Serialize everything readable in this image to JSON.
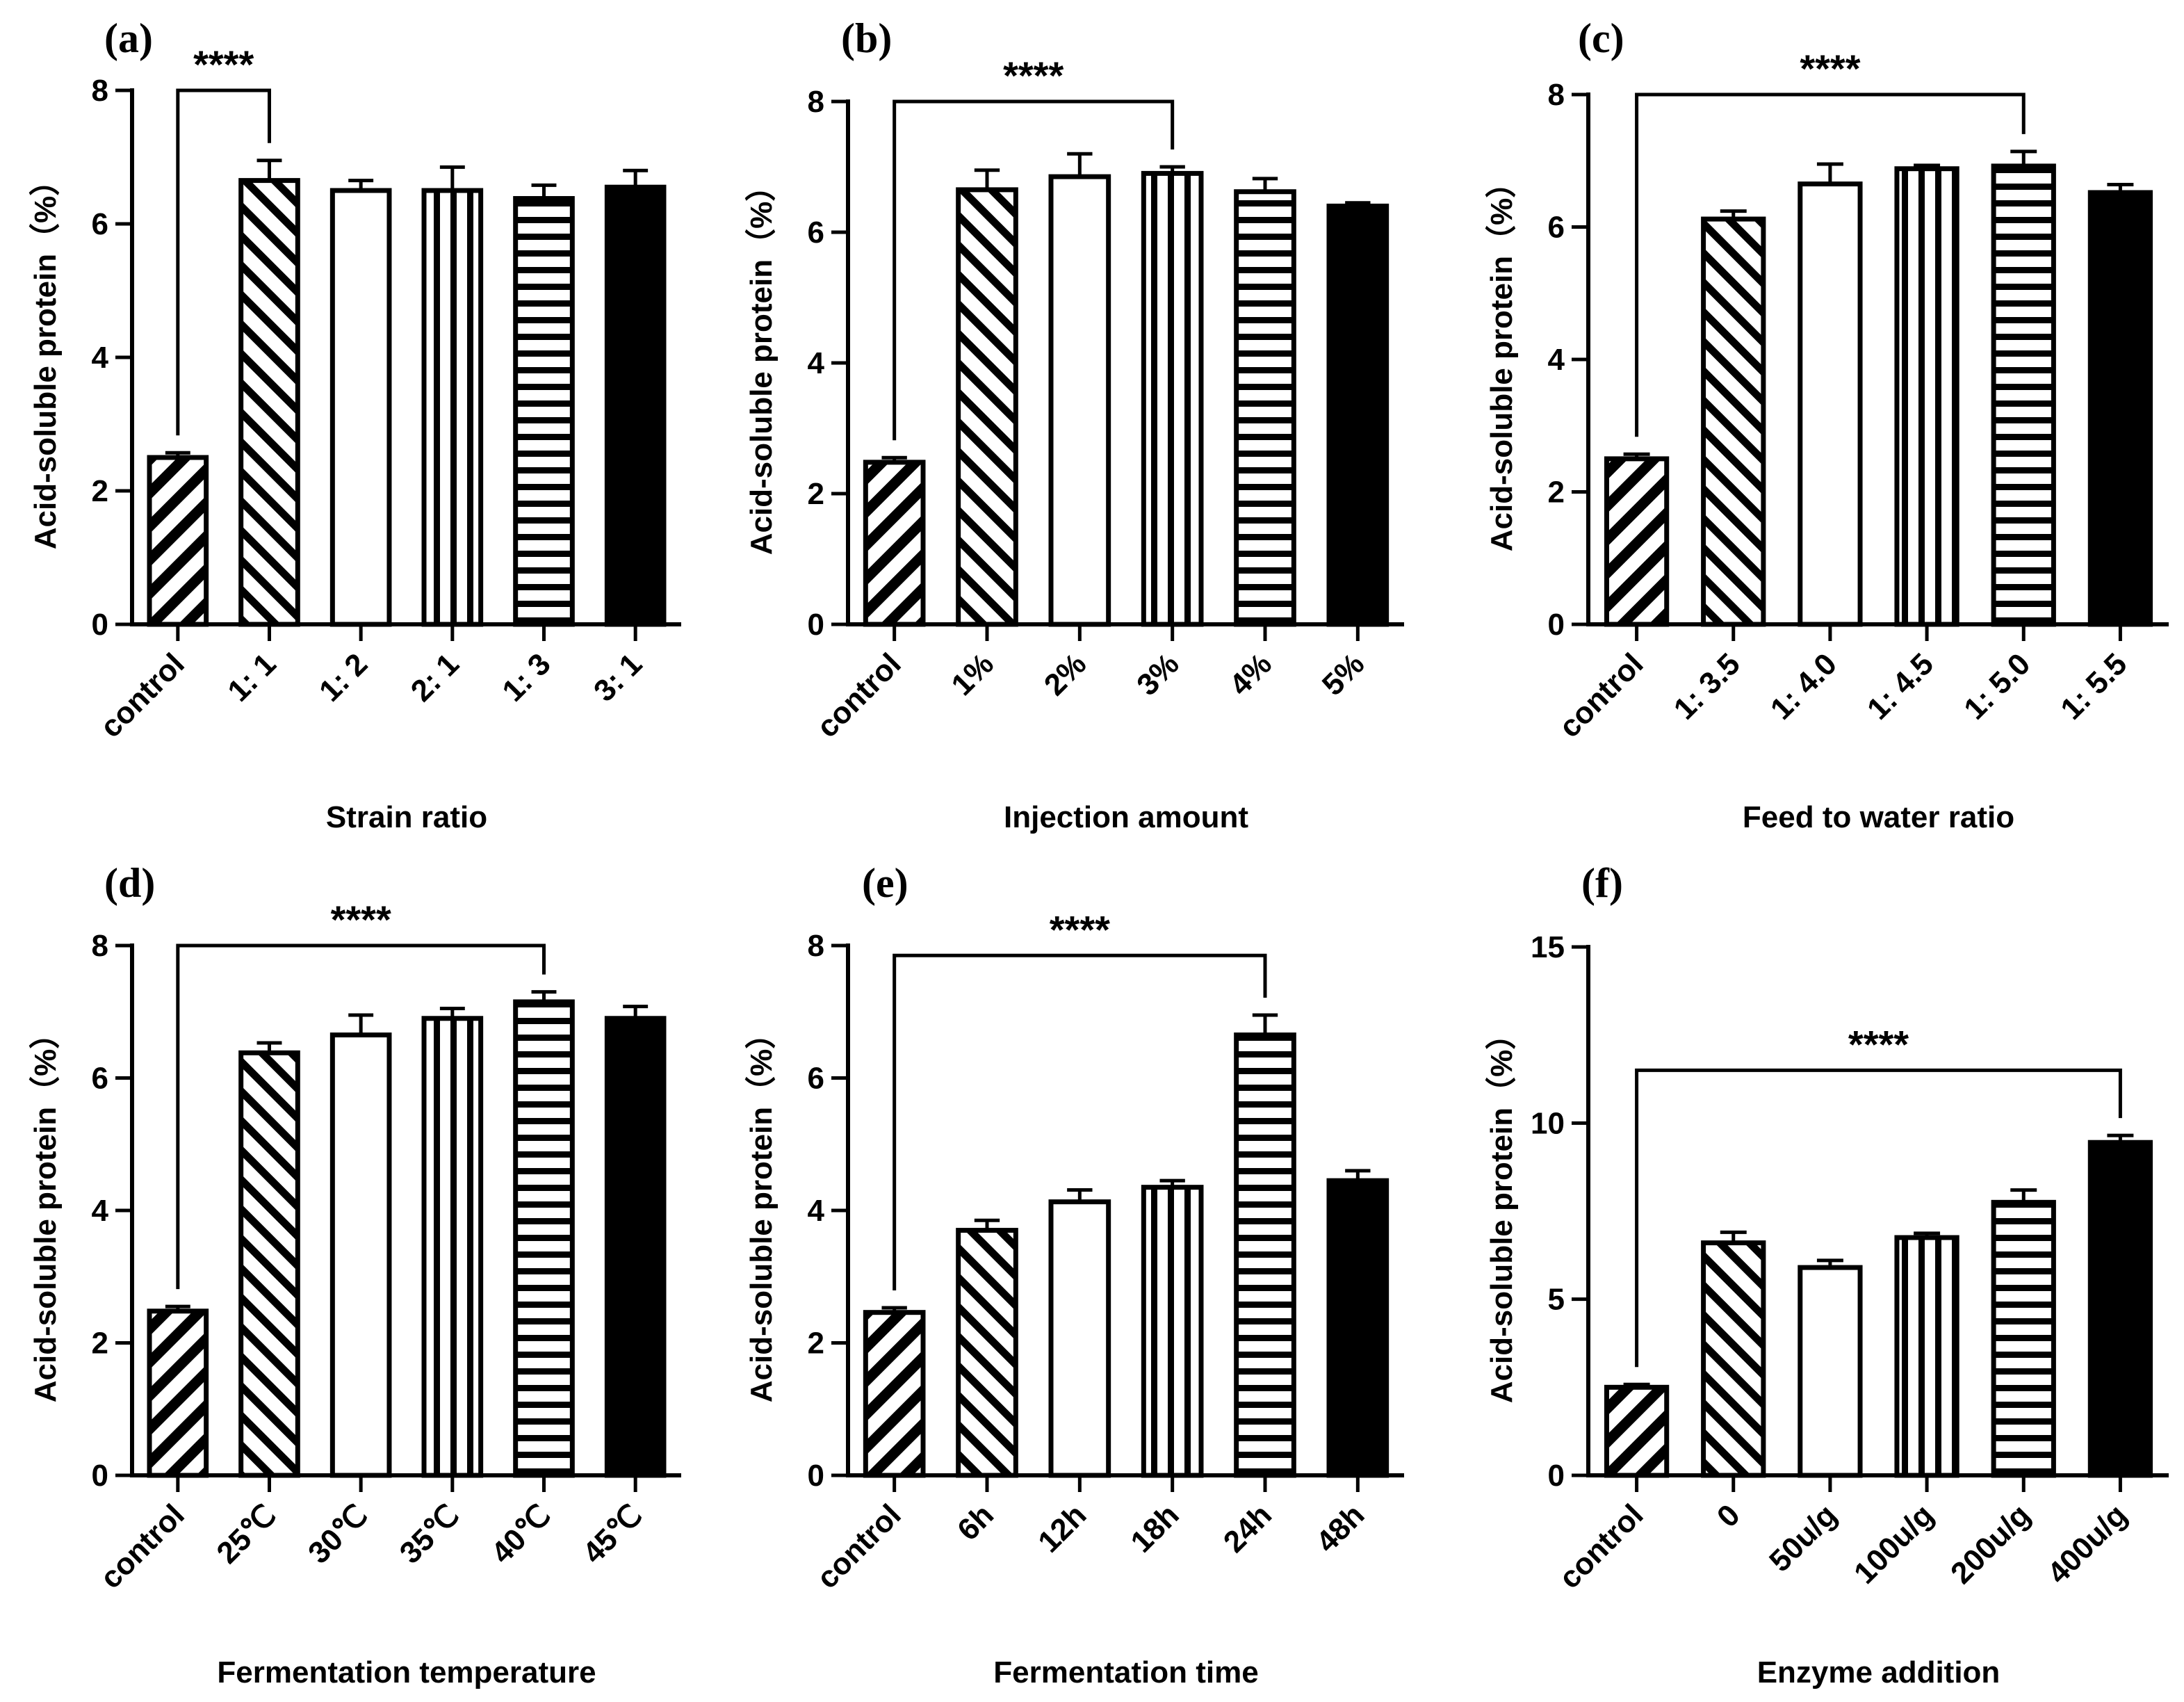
{
  "chart_data": [
    {
      "type": "bar",
      "panel_label": "(a)",
      "xlabel": "Strain ratio",
      "ylabel": "Acid-soluble protein（%）",
      "categories": [
        "control",
        "1: 1",
        "1: 2",
        "2: 1",
        "1: 3",
        "3: 1"
      ],
      "values": [
        2.5,
        6.65,
        6.5,
        6.5,
        6.38,
        6.55
      ],
      "errors": [
        0.07,
        0.3,
        0.15,
        0.35,
        0.2,
        0.25
      ],
      "patterns": [
        "diag-back",
        "diag-fwd",
        "open",
        "vertical",
        "horizontal",
        "solid"
      ],
      "ylim": [
        0,
        8
      ],
      "yticks": [
        0,
        2,
        4,
        6,
        8
      ],
      "significance": {
        "label": "****",
        "from": 0,
        "to": 1,
        "y": 8.0
      }
    },
    {
      "type": "bar",
      "panel_label": "(b)",
      "xlabel": "Injection amount",
      "ylabel": "Acid-soluble protein（%）",
      "categories": [
        "control",
        "1%",
        "2%",
        "3%",
        "4%",
        "5%"
      ],
      "values": [
        2.48,
        6.65,
        6.85,
        6.9,
        6.62,
        6.4
      ],
      "errors": [
        0.07,
        0.3,
        0.35,
        0.1,
        0.2,
        0.05
      ],
      "patterns": [
        "diag-back",
        "diag-fwd",
        "open",
        "vertical",
        "horizontal",
        "solid"
      ],
      "ylim": [
        0,
        8
      ],
      "yticks": [
        0,
        2,
        4,
        6,
        8
      ],
      "significance": {
        "label": "****",
        "from": 0,
        "to": 3,
        "y": 8.0
      }
    },
    {
      "type": "bar",
      "panel_label": "(c)",
      "xlabel": "Feed to water ratio",
      "ylabel": "Acid-soluble protein（%）",
      "categories": [
        "control",
        "1: 3.5",
        "1: 4.0",
        "1: 4.5",
        "1: 5.0",
        "1: 5.5"
      ],
      "values": [
        2.5,
        6.12,
        6.65,
        6.88,
        6.92,
        6.52
      ],
      "errors": [
        0.07,
        0.12,
        0.3,
        0.05,
        0.22,
        0.12
      ],
      "patterns": [
        "diag-back",
        "diag-fwd",
        "open",
        "vertical",
        "horizontal",
        "solid"
      ],
      "ylim": [
        0,
        8
      ],
      "yticks": [
        0,
        2,
        4,
        6,
        8
      ],
      "significance": {
        "label": "****",
        "from": 0,
        "to": 4,
        "y": 8.0
      }
    },
    {
      "type": "bar",
      "panel_label": "(d)",
      "xlabel": "Fermentation temperature",
      "ylabel": "Acid-soluble protein（%）",
      "categories": [
        "control",
        "25℃",
        "30℃",
        "35℃",
        "40℃",
        "45℃"
      ],
      "values": [
        2.48,
        6.38,
        6.65,
        6.9,
        7.15,
        6.9
      ],
      "errors": [
        0.07,
        0.15,
        0.3,
        0.15,
        0.15,
        0.18
      ],
      "patterns": [
        "diag-back",
        "diag-fwd",
        "open",
        "vertical",
        "horizontal",
        "solid"
      ],
      "ylim": [
        0,
        8
      ],
      "yticks": [
        0,
        2,
        4,
        6,
        8
      ],
      "significance": {
        "label": "****",
        "from": 0,
        "to": 4,
        "y": 8.0
      }
    },
    {
      "type": "bar",
      "panel_label": "(e)",
      "xlabel": "Fermentation time",
      "ylabel": "Acid-soluble protein（%）",
      "categories": [
        "control",
        "6h",
        "12h",
        "18h",
        "24h",
        "48h"
      ],
      "values": [
        2.46,
        3.7,
        4.13,
        4.35,
        6.65,
        4.45
      ],
      "errors": [
        0.07,
        0.15,
        0.18,
        0.1,
        0.3,
        0.15
      ],
      "patterns": [
        "diag-back",
        "diag-fwd",
        "open",
        "vertical",
        "horizontal",
        "solid"
      ],
      "ylim": [
        0,
        8
      ],
      "yticks": [
        0,
        2,
        4,
        6,
        8
      ],
      "significance": {
        "label": "****",
        "from": 0,
        "to": 4,
        "y": 7.85
      }
    },
    {
      "type": "bar",
      "panel_label": "(f)",
      "xlabel": "Enzyme addition",
      "ylabel": "Acid-soluble protein（%）",
      "categories": [
        "control",
        "0",
        "50u/g",
        "100u/g",
        "200u/g",
        "400u/g"
      ],
      "values": [
        2.5,
        6.6,
        5.9,
        6.75,
        7.75,
        9.45
      ],
      "errors": [
        0.08,
        0.3,
        0.2,
        0.12,
        0.35,
        0.2
      ],
      "patterns": [
        "diag-back",
        "diag-fwd",
        "open",
        "vertical",
        "horizontal",
        "solid"
      ],
      "ylim": [
        0,
        15
      ],
      "yticks": [
        0,
        5,
        10,
        15
      ],
      "significance": {
        "label": "****",
        "from": 0,
        "to": 5,
        "y": 11.5
      }
    }
  ]
}
